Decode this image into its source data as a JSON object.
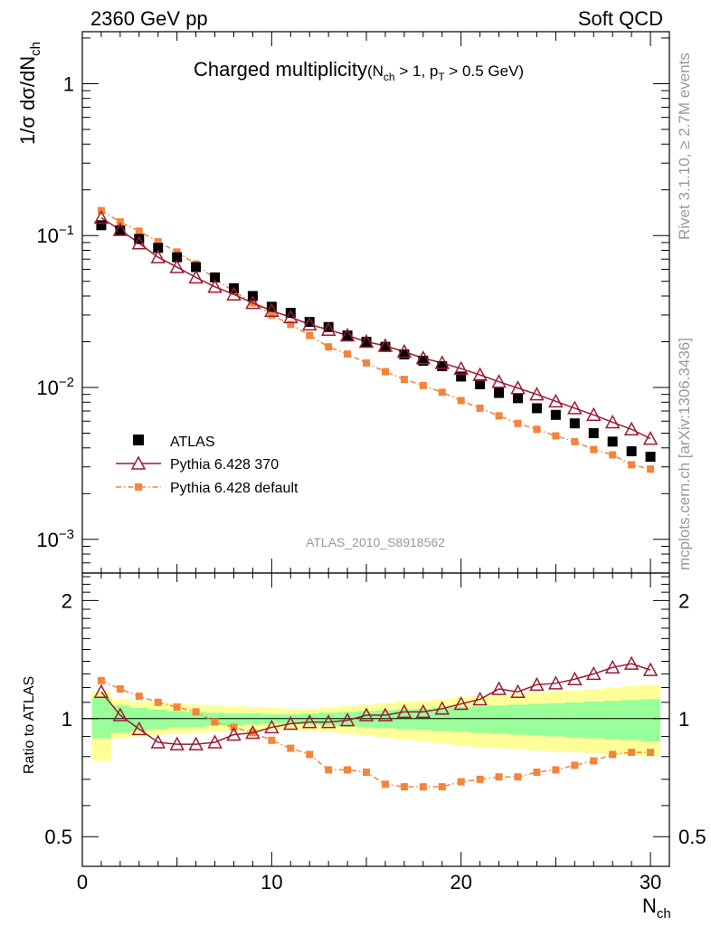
{
  "header": {
    "left": "2360 GeV pp",
    "right": "Soft QCD"
  },
  "side_labels": {
    "rivet": "Rivet 3.1.10, ≥ 2.7M events",
    "source": "mcplots.cern.ch [arXiv:1306.3436]"
  },
  "analysis_id": "ATLAS_2010_S8918562",
  "colors": {
    "atlas": "#000000",
    "pythia370": "#9b1b30",
    "pythia_default": "#f4843b",
    "band_inner": "#99ff99",
    "band_outer": "#ffff99"
  },
  "chart_data": [
    {
      "type": "scatter",
      "title_main": "Charged multiplicity",
      "title_sub": "(N",
      "title_sub_ch": "ch",
      "title_sub_rest": " > 1, p",
      "title_sub_t": "T",
      "title_sub_end": " > 0.5 GeV)",
      "ylabel_main": "1/σ dσ/dN",
      "ylabel_sub": "ch",
      "yscale": "log",
      "ylim": [
        0.0006,
        2.2
      ],
      "xlim": [
        0,
        31
      ],
      "ytick_labels": [
        {
          "value": 1,
          "base": "1",
          "exp": ""
        },
        {
          "value": 0.1,
          "base": "10",
          "exp": "−1"
        },
        {
          "value": 0.01,
          "base": "10",
          "exp": "−2"
        },
        {
          "value": 0.001,
          "base": "10",
          "exp": "−3"
        }
      ],
      "legend_position": "bottom-left",
      "series": [
        {
          "name": "ATLAS",
          "marker": "square",
          "x": [
            1,
            2,
            3,
            4,
            5,
            6,
            7,
            8,
            9,
            10,
            11,
            12,
            13,
            14,
            15,
            16,
            17,
            18,
            19,
            20,
            21,
            22,
            23,
            24,
            25,
            26,
            27,
            28,
            29,
            30
          ],
          "values": [
            0.117,
            0.108,
            0.095,
            0.083,
            0.072,
            0.062,
            0.053,
            0.045,
            0.04,
            0.034,
            0.031,
            0.027,
            0.025,
            0.022,
            0.02,
            0.0185,
            0.0165,
            0.015,
            0.0138,
            0.0118,
            0.0105,
            0.0092,
            0.0085,
            0.0073,
            0.0066,
            0.0058,
            0.005,
            0.0044,
            0.0038,
            0.0035
          ]
        },
        {
          "name": "Pythia 6.428 370",
          "marker": "triangle",
          "x": [
            1,
            2,
            3,
            4,
            5,
            6,
            7,
            8,
            9,
            10,
            11,
            12,
            13,
            14,
            15,
            16,
            17,
            18,
            19,
            20,
            21,
            22,
            23,
            24,
            25,
            26,
            27,
            28,
            29,
            30
          ],
          "values": [
            0.131,
            0.109,
            0.089,
            0.072,
            0.062,
            0.053,
            0.046,
            0.041,
            0.036,
            0.032,
            0.029,
            0.026,
            0.024,
            0.022,
            0.02,
            0.0188,
            0.0172,
            0.0156,
            0.0145,
            0.0133,
            0.0121,
            0.0109,
            0.0099,
            0.009,
            0.0081,
            0.0073,
            0.0066,
            0.0059,
            0.0053,
            0.0046
          ]
        },
        {
          "name": "Pythia 6.428 default",
          "marker": "small-square",
          "x": [
            1,
            2,
            3,
            4,
            5,
            6,
            7,
            8,
            9,
            10,
            11,
            12,
            13,
            14,
            15,
            16,
            17,
            18,
            19,
            20,
            21,
            22,
            23,
            24,
            25,
            26,
            27,
            28,
            29,
            30
          ],
          "values": [
            0.146,
            0.123,
            0.107,
            0.091,
            0.078,
            0.065,
            0.052,
            0.043,
            0.036,
            0.03,
            0.026,
            0.022,
            0.0185,
            0.0166,
            0.0145,
            0.0127,
            0.0113,
            0.0103,
            0.0093,
            0.0082,
            0.0073,
            0.0065,
            0.0058,
            0.0053,
            0.0048,
            0.0044,
            0.0039,
            0.0036,
            0.0031,
            0.0029
          ]
        }
      ]
    },
    {
      "type": "line",
      "ylabel": "Ratio to ATLAS",
      "xlabel_main": "N",
      "xlabel_sub": "ch",
      "ylim": [
        0.42,
        2.35
      ],
      "xlim": [
        0,
        31
      ],
      "yscale": "log",
      "ytick_labels": [
        {
          "value": 2,
          "label": "2"
        },
        {
          "value": 1,
          "label": "1"
        },
        {
          "value": 0.5,
          "label": "0.5"
        }
      ],
      "xtick_labels": [
        {
          "value": 0,
          "label": "0"
        },
        {
          "value": 10,
          "label": "10"
        },
        {
          "value": 20,
          "label": "20"
        },
        {
          "value": 30,
          "label": "30"
        }
      ],
      "uncertainty_band": {
        "x_edges": [
          0.5,
          1.5,
          2.5,
          3.5,
          4.5,
          5.5,
          6.5,
          7.5,
          8.5,
          9.5,
          10.5,
          11.5,
          12.5,
          13.5,
          14.5,
          15.5,
          16.5,
          17.5,
          18.5,
          19.5,
          20.5,
          21.5,
          22.5,
          23.5,
          24.5,
          25.5,
          26.5,
          27.5,
          28.5,
          29.5,
          30.5
        ],
        "inner_lo": [
          0.89,
          0.92,
          0.93,
          0.94,
          0.95,
          0.95,
          0.96,
          0.96,
          0.965,
          0.97,
          0.97,
          0.965,
          0.96,
          0.955,
          0.95,
          0.945,
          0.94,
          0.935,
          0.93,
          0.925,
          0.92,
          0.915,
          0.91,
          0.905,
          0.9,
          0.895,
          0.89,
          0.885,
          0.88,
          0.875
        ],
        "inner_hi": [
          1.13,
          1.08,
          1.065,
          1.055,
          1.045,
          1.04,
          1.035,
          1.03,
          1.03,
          1.025,
          1.025,
          1.03,
          1.035,
          1.04,
          1.045,
          1.05,
          1.055,
          1.06,
          1.065,
          1.07,
          1.075,
          1.08,
          1.085,
          1.09,
          1.095,
          1.1,
          1.105,
          1.11,
          1.115,
          1.12
        ],
        "outer_lo": [
          0.78,
          0.89,
          0.9,
          0.91,
          0.915,
          0.92,
          0.925,
          0.93,
          0.93,
          0.935,
          0.935,
          0.93,
          0.925,
          0.915,
          0.905,
          0.895,
          0.885,
          0.875,
          0.865,
          0.855,
          0.845,
          0.84,
          0.835,
          0.83,
          0.825,
          0.82,
          0.815,
          0.81,
          0.805,
          0.8
        ],
        "outer_hi": [
          1.17,
          1.12,
          1.11,
          1.1,
          1.095,
          1.085,
          1.08,
          1.075,
          1.07,
          1.065,
          1.06,
          1.06,
          1.065,
          1.075,
          1.085,
          1.095,
          1.105,
          1.11,
          1.12,
          1.13,
          1.14,
          1.145,
          1.155,
          1.165,
          1.175,
          1.18,
          1.19,
          1.2,
          1.21,
          1.22
        ]
      },
      "series": [
        {
          "name": "Pythia 6.428 370",
          "marker": "triangle",
          "x": [
            1,
            2,
            3,
            4,
            5,
            6,
            7,
            8,
            9,
            10,
            11,
            12,
            13,
            14,
            15,
            16,
            17,
            18,
            19,
            20,
            21,
            22,
            23,
            24,
            25,
            26,
            27,
            28,
            29,
            30
          ],
          "values": [
            1.17,
            1.02,
            0.94,
            0.87,
            0.86,
            0.86,
            0.87,
            0.91,
            0.92,
            0.95,
            0.97,
            0.98,
            0.98,
            0.99,
            1.02,
            1.02,
            1.04,
            1.04,
            1.06,
            1.09,
            1.12,
            1.19,
            1.17,
            1.22,
            1.23,
            1.26,
            1.3,
            1.35,
            1.38,
            1.33
          ]
        },
        {
          "name": "Pythia 6.428 default",
          "marker": "small-square",
          "x": [
            1,
            2,
            3,
            4,
            5,
            6,
            7,
            8,
            9,
            10,
            11,
            12,
            13,
            14,
            15,
            16,
            17,
            18,
            19,
            20,
            21,
            22,
            23,
            24,
            25,
            26,
            27,
            28,
            29,
            30
          ],
          "values": [
            1.25,
            1.19,
            1.14,
            1.1,
            1.07,
            1.04,
            0.98,
            0.95,
            0.92,
            0.88,
            0.84,
            0.81,
            0.74,
            0.74,
            0.73,
            0.68,
            0.67,
            0.67,
            0.67,
            0.69,
            0.7,
            0.71,
            0.71,
            0.73,
            0.74,
            0.76,
            0.78,
            0.81,
            0.82,
            0.82
          ]
        }
      ]
    }
  ]
}
